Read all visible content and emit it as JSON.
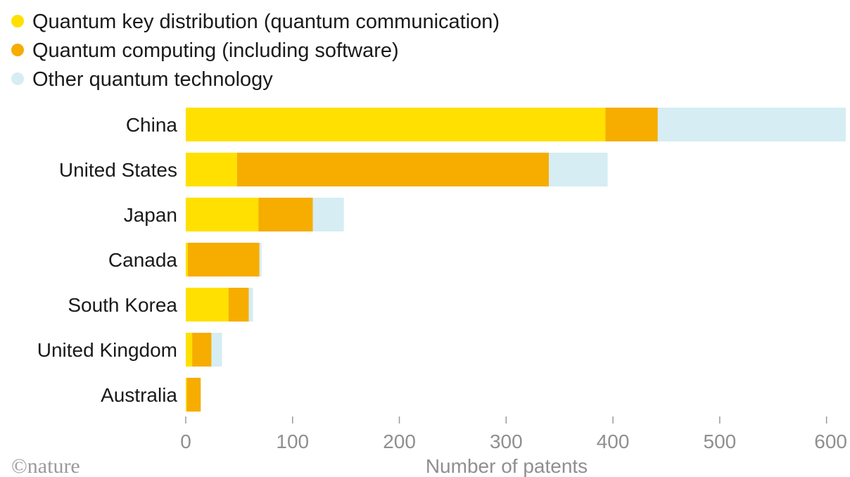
{
  "chart_data": {
    "type": "bar",
    "orientation": "horizontal",
    "stacked": true,
    "categories": [
      "China",
      "United States",
      "Japan",
      "Canada",
      "South Korea",
      "United Kingdom",
      "Australia"
    ],
    "series": [
      {
        "name": "Quantum key distribution (quantum communication)",
        "color": "#ffe000",
        "values": [
          393,
          48,
          68,
          2,
          40,
          6,
          1
        ]
      },
      {
        "name": "Quantum computing (including software)",
        "color": "#f6ad00",
        "values": [
          49,
          292,
          51,
          67,
          19,
          18,
          13
        ]
      },
      {
        "name": "Other quantum technology",
        "color": "#d6edf4",
        "values": [
          176,
          55,
          29,
          2,
          4,
          10,
          0
        ]
      }
    ],
    "xlabel": "Number of patents",
    "xlim": [
      0,
      620
    ],
    "xticks": [
      0,
      100,
      200,
      300,
      400,
      500,
      600
    ],
    "legend_position": "top-left",
    "grid": false
  },
  "credit": "©nature"
}
